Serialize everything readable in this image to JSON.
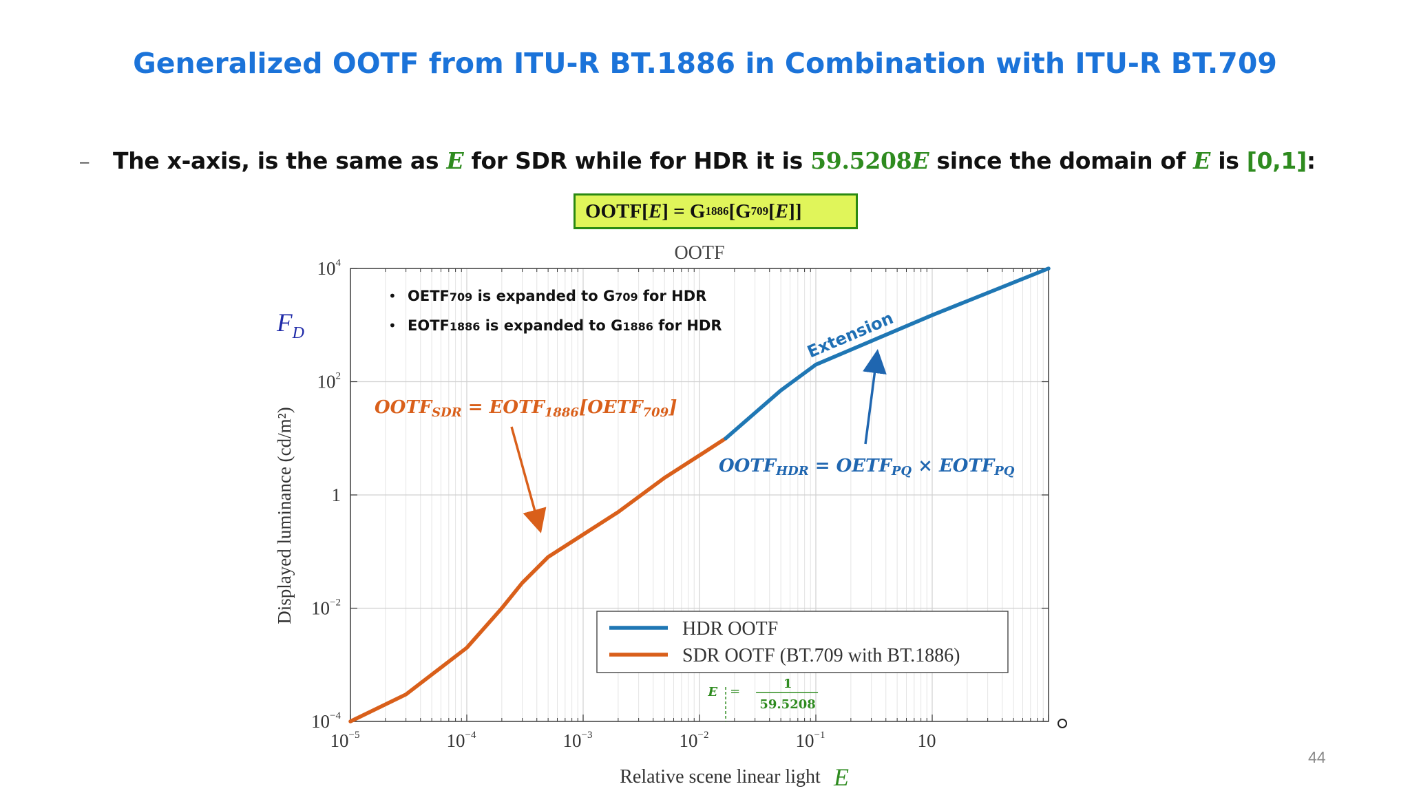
{
  "slide": {
    "title": "Generalized OOTF from ITU-R BT.1886 in Combination with ITU-R BT.709",
    "bullet": {
      "dash": "–",
      "text_1": "The x-axis, is the same as ",
      "var_e": "E",
      "text_2": " for SDR while for HDR it is ",
      "hdr_value": "59.5208",
      "text_3": " since the domain of ",
      "text_4": " is ",
      "domain": "[0,1]",
      "colon": ":"
    },
    "formula_box": {
      "part1": "OOTF[",
      "e1": "E",
      "part2": "] = G",
      "sub1": "1886",
      "part3": " [G",
      "sub2": "709",
      "part4": "[",
      "e2": "E",
      "part5": "]]"
    },
    "page_number": "44",
    "fd_label": {
      "main": "F",
      "sub": "D"
    },
    "colors": {
      "title": "#1b73d9",
      "hdr": "#1f77b4",
      "sdr": "#d95f1a",
      "green": "#2e8b1f",
      "box_fill": "#e0f55a"
    }
  },
  "chart_data": {
    "type": "line",
    "title": "OOTF",
    "xlabel": "Relative scene linear light",
    "xlabel_var": "E",
    "ylabel": "Displayed luminance (cd/m²)",
    "xscale": "log",
    "yscale": "log",
    "xlim": [
      1e-05,
      10
    ],
    "ylim": [
      0.0001,
      10000
    ],
    "grid": true,
    "x_ticks": [
      {
        "base": "10",
        "exp": "−5"
      },
      {
        "base": "10",
        "exp": "−4"
      },
      {
        "base": "10",
        "exp": "−3"
      },
      {
        "base": "10",
        "exp": "−2"
      },
      {
        "base": "10",
        "exp": "−1"
      },
      {
        "base": "10",
        "exp": ""
      }
    ],
    "y_ticks": [
      {
        "base": "10",
        "exp": "−4"
      },
      {
        "base": "10",
        "exp": "−2"
      },
      {
        "base": "1",
        "exp": ""
      },
      {
        "base": "10",
        "exp": "2"
      },
      {
        "base": "10",
        "exp": "4"
      }
    ],
    "series": [
      {
        "name": "SDR OOTF (BT.709 with BT.1886)",
        "color": "#d95f1a",
        "points": [
          [
            1e-05,
            0.0001
          ],
          [
            3e-05,
            0.0003
          ],
          [
            0.0001,
            0.002
          ],
          [
            0.0002,
            0.01
          ],
          [
            0.0003,
            0.028
          ],
          [
            0.0005,
            0.08
          ],
          [
            0.001,
            0.2
          ],
          [
            0.002,
            0.5
          ],
          [
            0.005,
            2
          ],
          [
            0.01,
            5
          ],
          [
            0.0168,
            10
          ]
        ]
      },
      {
        "name": "HDR OOTF",
        "color": "#1f77b4",
        "points": [
          [
            0.0168,
            10
          ],
          [
            0.05,
            70
          ],
          [
            0.1,
            200
          ],
          [
            1,
            1500
          ],
          [
            10,
            10000
          ]
        ]
      }
    ],
    "legend": {
      "placement": "lower-right"
    },
    "annotations": {
      "bullets": [
        {
          "a": "OETF",
          "sub": "709",
          "b": "  is expanded to G",
          "sub2": "709",
          "c": " for HDR"
        },
        {
          "a": "EOTF",
          "sub": "1886",
          "b": "  is expanded to G",
          "sub2": "1886",
          "c": " for HDR"
        }
      ],
      "extension": "Extension",
      "sdr_eq": {
        "lhs": "OOTF",
        "lhs_sub": "SDR",
        "eq": " = EOTF",
        "sub2": "1886",
        "bracket": "[OETF",
        "sub3": "709",
        "close": "]"
      },
      "hdr_eq": {
        "lhs": "OOTF",
        "lhs_sub": "HDR",
        "eq": " = OETF",
        "sub2": "PQ",
        "times": " × EOTF",
        "sub3": "PQ"
      },
      "e_marker": {
        "lhs": "E",
        "eq": "=",
        "num": "1",
        "den": "59.5208"
      }
    }
  }
}
